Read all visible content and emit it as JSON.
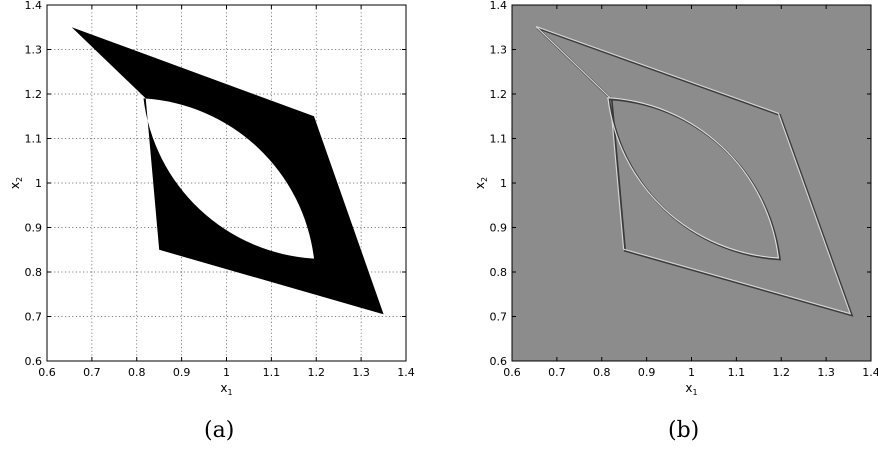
{
  "figures": [
    {
      "id": "a",
      "caption": "(a)",
      "xlabel": "x",
      "xlabel_sub": "1",
      "ylabel": "x",
      "ylabel_sub": "2"
    },
    {
      "id": "b",
      "caption": "(b)",
      "xlabel": "x",
      "xlabel_sub": "1",
      "ylabel": "x",
      "ylabel_sub": "2"
    }
  ],
  "chart_data": [
    {
      "type": "image",
      "style": "binary mask with dotted grid",
      "xlim": [
        0.6,
        1.4
      ],
      "ylim": [
        0.6,
        1.4
      ],
      "xticks": [
        "0.6",
        "0.7",
        "0.8",
        "0.9",
        "1",
        "1.1",
        "1.2",
        "1.3",
        "1.4"
      ],
      "yticks": [
        "0.6",
        "0.7",
        "0.8",
        "0.9",
        "1",
        "1.1",
        "1.2",
        "1.3",
        "1.4"
      ],
      "grid": true,
      "outer_polygon": [
        [
          0.655,
          1.35
        ],
        [
          1.195,
          1.15
        ],
        [
          1.35,
          0.705
        ],
        [
          0.85,
          0.85
        ],
        [
          0.82,
          1.19
        ]
      ],
      "inner_lens": {
        "top_left": [
          0.815,
          1.19
        ],
        "bottom_right": [
          1.195,
          0.83
        ]
      },
      "fill_color": "#000000"
    },
    {
      "type": "image",
      "style": "grayscale edge map",
      "xlim": [
        0.6,
        1.4
      ],
      "ylim": [
        0.6,
        1.4
      ],
      "xticks": [
        "0.6",
        "0.7",
        "0.8",
        "0.9",
        "1",
        "1.1",
        "1.2",
        "1.3",
        "1.4"
      ],
      "yticks": [
        "0.6",
        "0.7",
        "0.8",
        "0.9",
        "1",
        "1.1",
        "1.2",
        "1.3",
        "1.4"
      ],
      "grid": false,
      "outer_polygon": [
        [
          0.655,
          1.35
        ],
        [
          1.195,
          1.155
        ],
        [
          1.355,
          0.705
        ],
        [
          0.85,
          0.85
        ],
        [
          0.82,
          1.19
        ]
      ],
      "inner_lens": {
        "top_left": [
          0.815,
          1.19
        ],
        "bottom_right": [
          1.195,
          0.83
        ]
      },
      "background_color": "#8c8c8c"
    }
  ]
}
